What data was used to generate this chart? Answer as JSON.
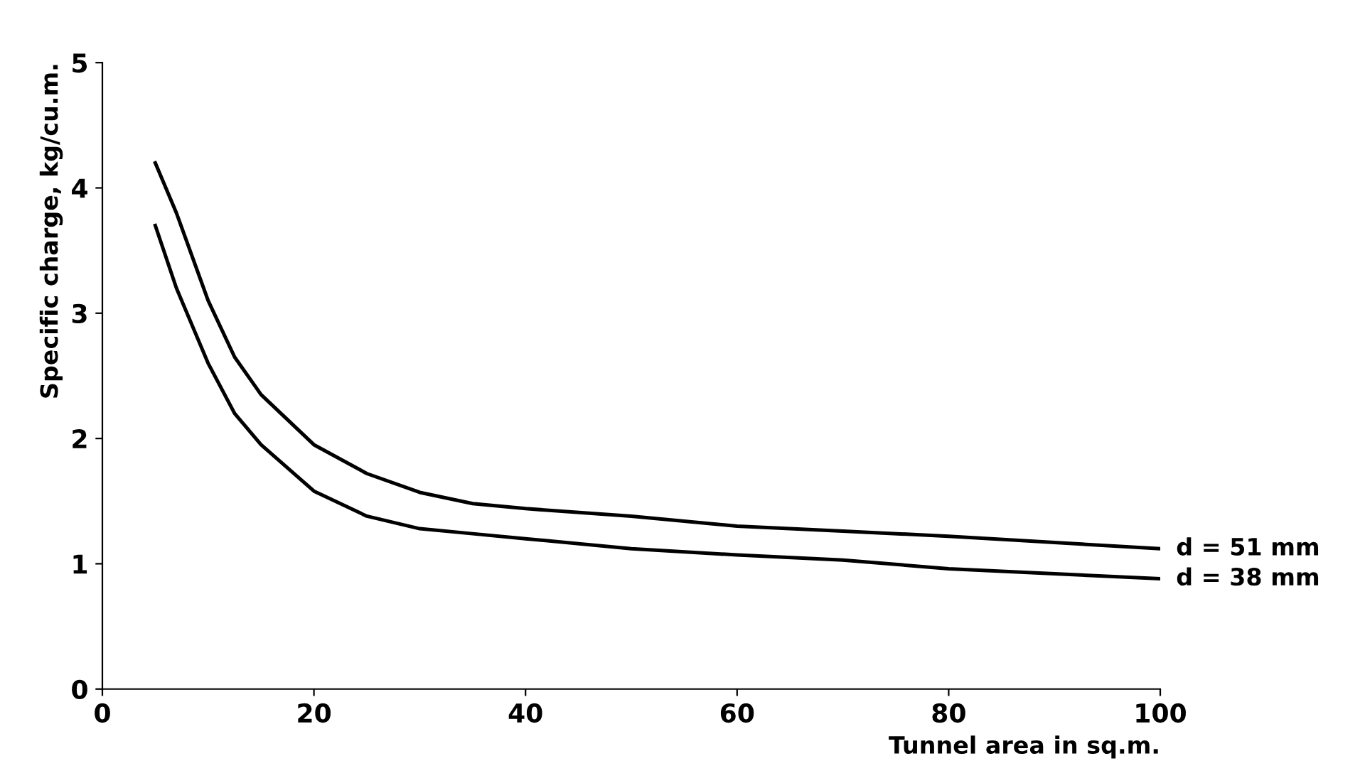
{
  "chart_data": {
    "type": "line",
    "xlabel": "Tunnel area in sq.m.",
    "ylabel": "Specific charge, kg/cu.m.",
    "xlim": [
      0,
      100
    ],
    "ylim": [
      0,
      5
    ],
    "xticks": [
      0,
      20,
      40,
      60,
      80,
      100
    ],
    "yticks": [
      0,
      1,
      2,
      3,
      4,
      5
    ],
    "grid": false,
    "legend": false,
    "marker": "none",
    "line_style": "solid",
    "series": [
      {
        "name": "d = 51 mm",
        "color": "#000000",
        "x": [
          5,
          7,
          10,
          12.5,
          15,
          20,
          25,
          30,
          35,
          40,
          50,
          60,
          70,
          80,
          90,
          100
        ],
        "values": [
          4.2,
          3.8,
          3.1,
          2.65,
          2.35,
          1.95,
          1.72,
          1.57,
          1.48,
          1.44,
          1.38,
          1.3,
          1.26,
          1.22,
          1.17,
          1.12
        ]
      },
      {
        "name": "d = 38 mm",
        "color": "#000000",
        "x": [
          5,
          7,
          10,
          12.5,
          15,
          20,
          25,
          30,
          35,
          40,
          50,
          60,
          70,
          80,
          90,
          100
        ],
        "values": [
          3.7,
          3.2,
          2.6,
          2.2,
          1.95,
          1.58,
          1.38,
          1.28,
          1.24,
          1.2,
          1.12,
          1.07,
          1.03,
          0.96,
          0.92,
          0.88
        ]
      }
    ]
  }
}
